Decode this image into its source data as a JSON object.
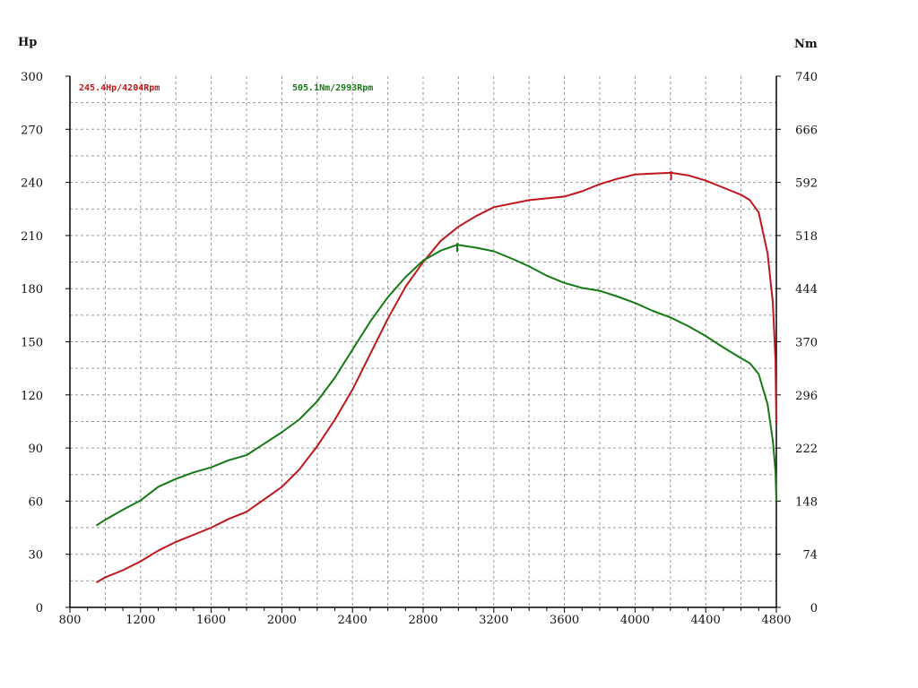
{
  "chart_data": {
    "type": "line",
    "left_unit": "Hp",
    "right_unit": "Nm",
    "x_range": [
      800,
      4800
    ],
    "y_left_range": [
      0,
      300
    ],
    "y_right_range": [
      0,
      740
    ],
    "grid": true,
    "x_ticks": [
      800,
      1200,
      1600,
      2000,
      2400,
      2800,
      3200,
      3600,
      4000,
      4400,
      4800
    ],
    "y_left_ticks": [
      0,
      30,
      60,
      90,
      120,
      150,
      180,
      210,
      240,
      270,
      300
    ],
    "y_right_ticks": [
      0,
      74,
      148,
      222,
      296,
      370,
      444,
      518,
      592,
      666,
      740
    ],
    "annotations": [
      {
        "text": "245.4Hp/4204Rpm",
        "color": "#c0161b"
      },
      {
        "text": "505.1Nm/2993Rpm",
        "color": "#157a15"
      }
    ],
    "series": [
      {
        "color": "#c0161b",
        "axis": "left",
        "peak": {
          "x": 4204,
          "y": 245.4
        },
        "points": [
          [
            950,
            14
          ],
          [
            1000,
            17
          ],
          [
            1100,
            21
          ],
          [
            1200,
            26
          ],
          [
            1300,
            32
          ],
          [
            1400,
            37
          ],
          [
            1500,
            41
          ],
          [
            1600,
            45
          ],
          [
            1700,
            50
          ],
          [
            1800,
            54
          ],
          [
            1900,
            61
          ],
          [
            2000,
            68
          ],
          [
            2100,
            78
          ],
          [
            2200,
            91
          ],
          [
            2300,
            106
          ],
          [
            2400,
            123
          ],
          [
            2500,
            143
          ],
          [
            2600,
            163
          ],
          [
            2700,
            181
          ],
          [
            2800,
            195
          ],
          [
            2900,
            207
          ],
          [
            3000,
            215
          ],
          [
            3100,
            221
          ],
          [
            3200,
            226
          ],
          [
            3300,
            228
          ],
          [
            3400,
            230
          ],
          [
            3500,
            231
          ],
          [
            3600,
            232
          ],
          [
            3700,
            235
          ],
          [
            3800,
            239
          ],
          [
            3900,
            242
          ],
          [
            4000,
            244.5
          ],
          [
            4100,
            245
          ],
          [
            4204,
            245.4
          ],
          [
            4300,
            244
          ],
          [
            4400,
            241
          ],
          [
            4500,
            237
          ],
          [
            4600,
            233
          ],
          [
            4650,
            230
          ],
          [
            4700,
            223
          ],
          [
            4750,
            200
          ],
          [
            4780,
            172
          ],
          [
            4795,
            140
          ],
          [
            4800,
            103
          ]
        ]
      },
      {
        "color": "#157a15",
        "axis": "right",
        "peak": {
          "x": 2993,
          "y": 505.1
        },
        "points": [
          [
            950,
            114
          ],
          [
            1000,
            122
          ],
          [
            1100,
            136
          ],
          [
            1200,
            149
          ],
          [
            1300,
            168
          ],
          [
            1400,
            179
          ],
          [
            1500,
            188
          ],
          [
            1600,
            195
          ],
          [
            1700,
            205
          ],
          [
            1800,
            212
          ],
          [
            1900,
            228
          ],
          [
            2000,
            244
          ],
          [
            2100,
            262
          ],
          [
            2200,
            287
          ],
          [
            2300,
            320
          ],
          [
            2400,
            359
          ],
          [
            2500,
            398
          ],
          [
            2600,
            432
          ],
          [
            2700,
            460
          ],
          [
            2800,
            483
          ],
          [
            2900,
            497
          ],
          [
            2993,
            505.1
          ],
          [
            3100,
            501
          ],
          [
            3200,
            496
          ],
          [
            3300,
            486
          ],
          [
            3400,
            475
          ],
          [
            3500,
            462
          ],
          [
            3600,
            452
          ],
          [
            3700,
            445
          ],
          [
            3800,
            441
          ],
          [
            3900,
            433
          ],
          [
            4000,
            424
          ],
          [
            4100,
            413
          ],
          [
            4200,
            404
          ],
          [
            4300,
            392
          ],
          [
            4400,
            378
          ],
          [
            4500,
            362
          ],
          [
            4600,
            347
          ],
          [
            4650,
            340
          ],
          [
            4700,
            325
          ],
          [
            4750,
            283
          ],
          [
            4780,
            232
          ],
          [
            4795,
            190
          ],
          [
            4800,
            148
          ]
        ]
      }
    ]
  }
}
